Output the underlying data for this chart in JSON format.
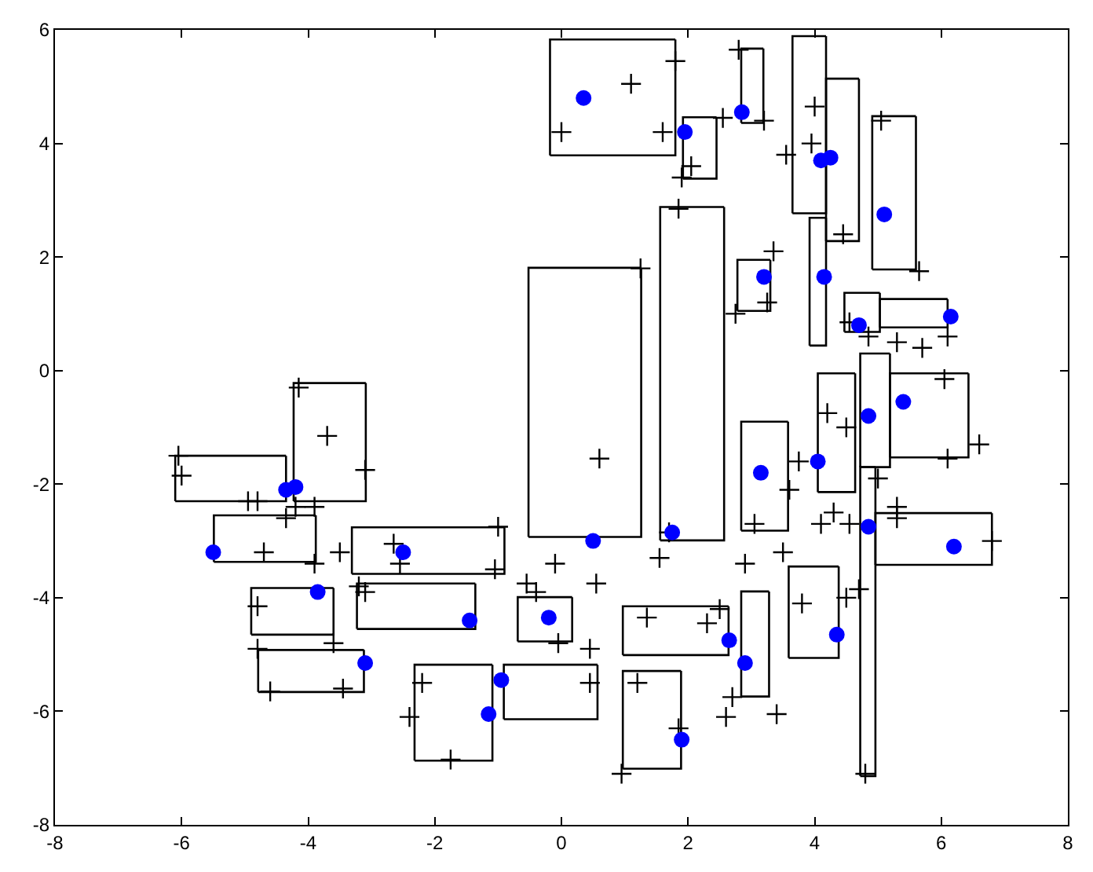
{
  "chart_data": {
    "type": "scatter",
    "xlim": [
      -8,
      8
    ],
    "ylim": [
      -8,
      6
    ],
    "xticks": [
      -8,
      -6,
      -4,
      -2,
      0,
      2,
      4,
      6,
      8
    ],
    "yticks": [
      -8,
      -6,
      -4,
      -2,
      0,
      2,
      4,
      6
    ],
    "legend": false,
    "series": [
      {
        "type": "line",
        "marker": "none",
        "color": "#000000",
        "x": [
          -0.18,
          -0.18,
          1.8
        ],
        "values": [
          3.79,
          5.83,
          5.83
        ]
      },
      {
        "type": "line",
        "marker": "none",
        "color": "#000000",
        "x": [
          -0.18,
          1.8,
          1.8
        ],
        "values": [
          3.79,
          3.79,
          5.83
        ]
      },
      {
        "type": "line",
        "marker": "none",
        "color": "#000000",
        "x": [
          1.92,
          1.92,
          2.45
        ],
        "values": [
          3.38,
          4.46,
          4.46
        ]
      },
      {
        "type": "line",
        "marker": "none",
        "color": "#000000",
        "x": [
          1.92,
          2.45,
          2.45
        ],
        "values": [
          3.38,
          3.38,
          4.46
        ]
      },
      {
        "type": "line",
        "marker": "none",
        "color": "#000000",
        "x": [
          2.84,
          2.84,
          3.19
        ],
        "values": [
          4.36,
          5.67,
          5.67
        ]
      },
      {
        "type": "line",
        "marker": "none",
        "color": "#000000",
        "x": [
          2.84,
          3.19,
          3.19
        ],
        "values": [
          4.36,
          4.36,
          5.67
        ]
      },
      {
        "type": "line",
        "marker": "none",
        "color": "#000000",
        "x": [
          3.65,
          3.65,
          4.18
        ],
        "values": [
          2.77,
          5.89,
          5.89
        ]
      },
      {
        "type": "line",
        "marker": "none",
        "color": "#000000",
        "x": [
          3.65,
          4.18,
          4.18
        ],
        "values": [
          2.77,
          2.77,
          5.89
        ]
      },
      {
        "type": "line",
        "marker": "none",
        "color": "#000000",
        "x": [
          4.18,
          4.18,
          4.7
        ],
        "values": [
          2.28,
          5.14,
          5.14
        ]
      },
      {
        "type": "line",
        "marker": "none",
        "color": "#000000",
        "x": [
          4.18,
          4.7,
          4.7
        ],
        "values": [
          2.28,
          2.28,
          5.14
        ]
      },
      {
        "type": "line",
        "marker": "none",
        "color": "#000000",
        "x": [
          4.91,
          4.91,
          5.6
        ],
        "values": [
          1.78,
          4.48,
          4.48
        ]
      },
      {
        "type": "line",
        "marker": "none",
        "color": "#000000",
        "x": [
          4.91,
          5.6,
          5.6
        ],
        "values": [
          1.78,
          1.78,
          4.48
        ]
      },
      {
        "type": "line",
        "marker": "none",
        "color": "#000000",
        "x": [
          2.78,
          2.78,
          3.3
        ],
        "values": [
          1.05,
          1.95,
          1.95
        ]
      },
      {
        "type": "line",
        "marker": "none",
        "color": "#000000",
        "x": [
          2.78,
          3.3,
          3.3
        ],
        "values": [
          1.05,
          1.05,
          1.95
        ]
      },
      {
        "type": "line",
        "marker": "none",
        "color": "#000000",
        "x": [
          3.92,
          3.92,
          4.18
        ],
        "values": [
          0.44,
          2.69,
          2.69
        ]
      },
      {
        "type": "line",
        "marker": "none",
        "color": "#000000",
        "x": [
          3.92,
          4.18,
          4.18
        ],
        "values": [
          0.44,
          0.44,
          2.69
        ]
      },
      {
        "type": "line",
        "marker": "none",
        "color": "#000000",
        "x": [
          4.47,
          4.47,
          5.03
        ],
        "values": [
          0.68,
          1.37,
          1.37
        ]
      },
      {
        "type": "line",
        "marker": "none",
        "color": "#000000",
        "x": [
          4.47,
          5.03,
          5.03
        ],
        "values": [
          0.68,
          0.68,
          1.37
        ]
      },
      {
        "type": "line",
        "marker": "none",
        "color": "#000000",
        "x": [
          5.03,
          5.03,
          6.1
        ],
        "values": [
          0.76,
          1.26,
          1.26
        ]
      },
      {
        "type": "line",
        "marker": "none",
        "color": "#000000",
        "x": [
          5.03,
          6.1,
          6.1
        ],
        "values": [
          0.76,
          0.76,
          1.26
        ]
      },
      {
        "type": "line",
        "marker": "none",
        "color": "#000000",
        "x": [
          -0.52,
          -0.52,
          1.26
        ],
        "values": [
          -2.93,
          1.81,
          1.81
        ]
      },
      {
        "type": "line",
        "marker": "none",
        "color": "#000000",
        "x": [
          -0.52,
          1.26,
          1.26
        ],
        "values": [
          -2.93,
          -2.93,
          1.81
        ]
      },
      {
        "type": "line",
        "marker": "none",
        "color": "#000000",
        "x": [
          1.56,
          1.56,
          2.57
        ],
        "values": [
          -2.99,
          2.88,
          2.88
        ]
      },
      {
        "type": "line",
        "marker": "none",
        "color": "#000000",
        "x": [
          1.56,
          2.57,
          2.57
        ],
        "values": [
          -2.99,
          -2.99,
          2.88
        ]
      },
      {
        "type": "line",
        "marker": "none",
        "color": "#000000",
        "x": [
          -6.1,
          -6.1,
          -4.35
        ],
        "values": [
          -2.3,
          -1.5,
          -1.5
        ]
      },
      {
        "type": "line",
        "marker": "none",
        "color": "#000000",
        "x": [
          -6.1,
          -4.35,
          -4.35
        ],
        "values": [
          -2.3,
          -2.3,
          -1.5
        ]
      },
      {
        "type": "line",
        "marker": "none",
        "color": "#000000",
        "x": [
          -4.23,
          -4.23,
          -3.09
        ],
        "values": [
          -2.3,
          -0.22,
          -0.22
        ]
      },
      {
        "type": "line",
        "marker": "none",
        "color": "#000000",
        "x": [
          -4.23,
          -3.09,
          -3.09
        ],
        "values": [
          -2.3,
          -2.3,
          -0.22
        ]
      },
      {
        "type": "line",
        "marker": "none",
        "color": "#000000",
        "x": [
          -5.49,
          -5.49,
          -3.88
        ],
        "values": [
          -3.37,
          -2.55,
          -2.55
        ]
      },
      {
        "type": "line",
        "marker": "none",
        "color": "#000000",
        "x": [
          -5.49,
          -3.88,
          -3.88
        ],
        "values": [
          -3.37,
          -3.37,
          -2.55
        ]
      },
      {
        "type": "line",
        "marker": "none",
        "color": "#000000",
        "x": [
          -3.31,
          -3.31,
          -0.9
        ],
        "values": [
          -3.58,
          -2.76,
          -2.76
        ]
      },
      {
        "type": "line",
        "marker": "none",
        "color": "#000000",
        "x": [
          -3.31,
          -0.9,
          -0.9
        ],
        "values": [
          -3.58,
          -3.58,
          -2.76
        ]
      },
      {
        "type": "line",
        "marker": "none",
        "color": "#000000",
        "x": [
          -3.23,
          -3.23,
          -1.36
        ],
        "values": [
          -4.55,
          -3.75,
          -3.75
        ]
      },
      {
        "type": "line",
        "marker": "none",
        "color": "#000000",
        "x": [
          -3.23,
          -1.36,
          -1.36
        ],
        "values": [
          -4.55,
          -4.55,
          -3.75
        ]
      },
      {
        "type": "line",
        "marker": "none",
        "color": "#000000",
        "x": [
          -4.9,
          -4.9,
          -3.6
        ],
        "values": [
          -4.65,
          -3.83,
          -3.83
        ]
      },
      {
        "type": "line",
        "marker": "none",
        "color": "#000000",
        "x": [
          -4.9,
          -3.6,
          -3.6
        ],
        "values": [
          -4.65,
          -4.65,
          -3.83
        ]
      },
      {
        "type": "line",
        "marker": "none",
        "color": "#000000",
        "x": [
          -4.79,
          -4.79,
          -3.12
        ],
        "values": [
          -5.66,
          -4.92,
          -4.92
        ]
      },
      {
        "type": "line",
        "marker": "none",
        "color": "#000000",
        "x": [
          -4.79,
          -3.12,
          -3.12
        ],
        "values": [
          -5.66,
          -5.66,
          -4.92
        ]
      },
      {
        "type": "line",
        "marker": "none",
        "color": "#000000",
        "x": [
          -2.32,
          -2.32,
          -1.09
        ],
        "values": [
          -6.87,
          -5.18,
          -5.18
        ]
      },
      {
        "type": "line",
        "marker": "none",
        "color": "#000000",
        "x": [
          -2.32,
          -1.09,
          -1.09
        ],
        "values": [
          -6.87,
          -6.87,
          -5.18
        ]
      },
      {
        "type": "line",
        "marker": "none",
        "color": "#000000",
        "x": [
          -0.91,
          -0.91,
          0.57
        ],
        "values": [
          -6.14,
          -5.18,
          -5.18
        ]
      },
      {
        "type": "line",
        "marker": "none",
        "color": "#000000",
        "x": [
          -0.91,
          0.57,
          0.57
        ],
        "values": [
          -6.14,
          -6.14,
          -5.18
        ]
      },
      {
        "type": "line",
        "marker": "none",
        "color": "#000000",
        "x": [
          -0.69,
          -0.69,
          0.17
        ],
        "values": [
          -4.77,
          -3.99,
          -3.99
        ]
      },
      {
        "type": "line",
        "marker": "none",
        "color": "#000000",
        "x": [
          -0.69,
          0.17,
          0.17
        ],
        "values": [
          -4.77,
          -4.77,
          -3.99
        ]
      },
      {
        "type": "line",
        "marker": "none",
        "color": "#000000",
        "x": [
          0.97,
          0.97,
          2.64
        ],
        "values": [
          -5.01,
          -4.15,
          -4.15
        ]
      },
      {
        "type": "line",
        "marker": "none",
        "color": "#000000",
        "x": [
          0.97,
          2.64,
          2.64
        ],
        "values": [
          -5.01,
          -5.01,
          -4.15
        ]
      },
      {
        "type": "line",
        "marker": "none",
        "color": "#000000",
        "x": [
          0.97,
          0.97,
          1.89
        ],
        "values": [
          -7.01,
          -5.29,
          -5.29
        ]
      },
      {
        "type": "line",
        "marker": "none",
        "color": "#000000",
        "x": [
          0.97,
          1.89,
          1.89
        ],
        "values": [
          -7.01,
          -7.01,
          -5.29
        ]
      },
      {
        "type": "line",
        "marker": "none",
        "color": "#000000",
        "x": [
          2.84,
          2.84,
          3.28
        ],
        "values": [
          -5.74,
          -3.89,
          -3.89
        ]
      },
      {
        "type": "line",
        "marker": "none",
        "color": "#000000",
        "x": [
          2.84,
          3.28,
          3.28
        ],
        "values": [
          -5.74,
          -5.74,
          -3.89
        ]
      },
      {
        "type": "line",
        "marker": "none",
        "color": "#000000",
        "x": [
          2.84,
          2.84,
          3.58
        ],
        "values": [
          -2.82,
          -0.9,
          -0.9
        ]
      },
      {
        "type": "line",
        "marker": "none",
        "color": "#000000",
        "x": [
          2.84,
          3.58,
          3.58
        ],
        "values": [
          -2.82,
          -2.82,
          -0.9
        ]
      },
      {
        "type": "line",
        "marker": "none",
        "color": "#000000",
        "x": [
          3.59,
          3.59,
          4.38
        ],
        "values": [
          -5.06,
          -3.45,
          -3.45
        ]
      },
      {
        "type": "line",
        "marker": "none",
        "color": "#000000",
        "x": [
          3.59,
          4.38,
          4.38
        ],
        "values": [
          -5.06,
          -5.06,
          -3.45
        ]
      },
      {
        "type": "line",
        "marker": "none",
        "color": "#000000",
        "x": [
          4.05,
          4.05,
          4.64
        ],
        "values": [
          -2.14,
          -0.05,
          -0.05
        ]
      },
      {
        "type": "line",
        "marker": "none",
        "color": "#000000",
        "x": [
          4.05,
          4.64,
          4.64
        ],
        "values": [
          -2.14,
          -2.14,
          -0.05
        ]
      },
      {
        "type": "line",
        "marker": "none",
        "color": "#000000",
        "x": [
          4.72,
          4.72,
          5.19
        ],
        "values": [
          -1.7,
          0.3,
          0.3
        ]
      },
      {
        "type": "line",
        "marker": "none",
        "color": "#000000",
        "x": [
          4.72,
          5.19,
          5.19
        ],
        "values": [
          -1.7,
          -1.7,
          0.3
        ]
      },
      {
        "type": "line",
        "marker": "none",
        "color": "#000000",
        "x": [
          4.72,
          4.72,
          4.96
        ],
        "values": [
          -7.14,
          -1.7,
          -1.7
        ]
      },
      {
        "type": "line",
        "marker": "none",
        "color": "#000000",
        "x": [
          4.72,
          4.96,
          4.96
        ],
        "values": [
          -7.14,
          -7.14,
          -1.7
        ]
      },
      {
        "type": "line",
        "marker": "none",
        "color": "#000000",
        "x": [
          5.19,
          5.19,
          6.43
        ],
        "values": [
          -1.53,
          -0.05,
          -0.05
        ]
      },
      {
        "type": "line",
        "marker": "none",
        "color": "#000000",
        "x": [
          5.19,
          6.43,
          6.43
        ],
        "values": [
          -1.53,
          -1.53,
          -0.05
        ]
      },
      {
        "type": "line",
        "marker": "none",
        "color": "#000000",
        "x": [
          4.96,
          4.96,
          6.8
        ],
        "values": [
          -3.42,
          -2.51,
          -2.51
        ]
      },
      {
        "type": "line",
        "marker": "none",
        "color": "#000000",
        "x": [
          4.96,
          6.8,
          6.8
        ],
        "values": [
          -3.42,
          -3.42,
          -2.51
        ]
      },
      {
        "marker": "cross",
        "color": "#000000",
        "x": [
          -6.05,
          -6.0,
          -4.15,
          -3.7,
          -3.1,
          -4.95,
          -4.8,
          -4.2,
          -3.9,
          -4.35,
          -4.7,
          -3.5,
          -3.9,
          -4.8,
          -3.6,
          -4.8,
          -4.6,
          -3.45,
          -2.65,
          -2.55,
          -3.2,
          -3.1,
          -1.0,
          -1.05,
          -0.55,
          -0.4,
          -2.2,
          -2.4,
          -1.75,
          -0.1,
          0.55,
          0.45,
          0.45,
          -0.05,
          0.6,
          1.25,
          1.7,
          1.55,
          1.85,
          1.6,
          1.8,
          1.9,
          2.05,
          2.55,
          2.8,
          3.2,
          3.55,
          3.35,
          3.25,
          2.75,
          3.05,
          2.9,
          3.5,
          3.6,
          3.8,
          4.5,
          4.1,
          4.5,
          4.3,
          4.55,
          5.0,
          5.3,
          6.05,
          6.6,
          6.8,
          5.3,
          3.95,
          4.0,
          4.45,
          5.65,
          5.3,
          5.7,
          6.1,
          2.5,
          2.6,
          2.7,
          3.4,
          1.2,
          1.85,
          0.95,
          1.35,
          2.3,
          4.8,
          4.7,
          0.0,
          1.1,
          5.05,
          4.55,
          4.85,
          6.1,
          4.2,
          3.75
        ],
        "values": [
          -1.5,
          -1.85,
          -0.3,
          -1.15,
          -1.75,
          -2.3,
          -2.3,
          -2.4,
          -2.4,
          -2.6,
          -3.2,
          -3.2,
          -3.4,
          -4.15,
          -4.8,
          -4.9,
          -5.65,
          -5.6,
          -3.05,
          -3.4,
          -3.8,
          -3.9,
          -2.75,
          -3.5,
          -3.75,
          -3.9,
          -5.5,
          -6.1,
          -6.85,
          -3.4,
          -3.75,
          -4.9,
          -5.5,
          -4.8,
          -1.55,
          1.8,
          -2.85,
          -3.3,
          2.85,
          4.2,
          5.45,
          3.4,
          3.6,
          4.45,
          5.65,
          4.4,
          3.8,
          2.1,
          1.2,
          1.0,
          -2.7,
          -3.4,
          -3.2,
          -2.1,
          -4.1,
          -4.0,
          -2.7,
          -1.0,
          -2.5,
          -2.7,
          -1.9,
          -2.4,
          -0.15,
          -1.3,
          -3.0,
          -2.6,
          4.0,
          4.65,
          2.4,
          1.75,
          0.5,
          0.4,
          0.6,
          -4.2,
          -6.1,
          -5.75,
          -6.05,
          -5.5,
          -6.3,
          -7.1,
          -4.35,
          -4.45,
          -7.1,
          -3.85,
          4.2,
          5.05,
          4.4,
          0.85,
          0.6,
          -1.55,
          -0.75,
          -1.6
        ]
      },
      {
        "marker": "circle",
        "color": "#0000ff",
        "x": [
          0.35,
          1.95,
          2.85,
          4.1,
          4.25,
          5.1,
          3.2,
          4.15,
          4.7,
          6.15,
          5.4,
          4.85,
          4.05,
          3.15,
          6.2,
          4.85,
          1.75,
          0.5,
          -4.2,
          -4.35,
          -5.5,
          -2.5,
          -3.85,
          -1.45,
          -0.2,
          -3.1,
          -0.95,
          -1.15,
          2.65,
          2.9,
          4.35,
          1.9
        ],
        "values": [
          4.8,
          4.2,
          4.55,
          3.7,
          3.75,
          2.75,
          1.65,
          1.65,
          0.8,
          0.95,
          -0.55,
          -0.8,
          -1.6,
          -1.8,
          -3.1,
          -2.75,
          -2.85,
          -3.0,
          -2.05,
          -2.1,
          -3.2,
          -3.2,
          -3.9,
          -4.4,
          -4.35,
          -5.15,
          -5.45,
          -6.05,
          -4.75,
          -5.15,
          -4.65,
          -6.5
        ]
      }
    ]
  }
}
